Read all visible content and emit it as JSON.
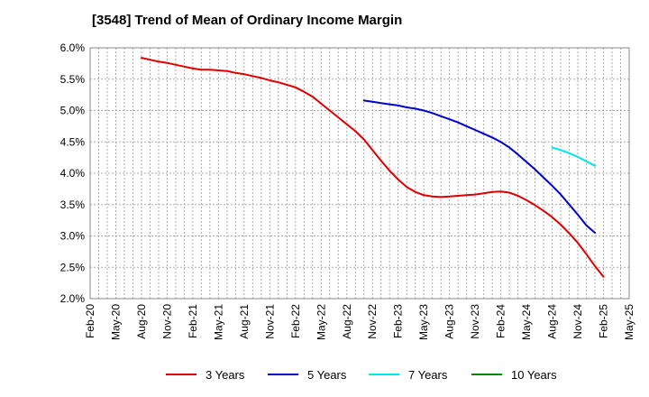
{
  "chart_data": {
    "type": "line",
    "title": "[3548]  Trend of Mean of Ordinary Income Margin",
    "xlabel": "",
    "ylabel": "",
    "x_ticks": [
      "Feb-20",
      "May-20",
      "Aug-20",
      "Nov-20",
      "Feb-21",
      "May-21",
      "Aug-21",
      "Nov-21",
      "Feb-22",
      "May-22",
      "Aug-22",
      "Nov-22",
      "Feb-23",
      "May-23",
      "Aug-23",
      "Nov-23",
      "Feb-24",
      "May-24",
      "Aug-24",
      "Nov-24",
      "Feb-25",
      "May-25"
    ],
    "y_ticks": [
      "6.0%",
      "5.5%",
      "5.0%",
      "4.5%",
      "4.0%",
      "3.5%",
      "3.0%",
      "2.5%",
      "2.0%"
    ],
    "ylim": [
      2.0,
      6.0
    ],
    "x_range": [
      "2020-02",
      "2025-05"
    ],
    "grid": true,
    "legend_position": "bottom",
    "series": [
      {
        "name": "3 Years",
        "color": "#dd0000",
        "points": [
          [
            "2020-08",
            5.84
          ],
          [
            "2020-09",
            5.81
          ],
          [
            "2020-10",
            5.78
          ],
          [
            "2020-11",
            5.76
          ],
          [
            "2020-12",
            5.73
          ],
          [
            "2021-01",
            5.7
          ],
          [
            "2021-02",
            5.67
          ],
          [
            "2021-03",
            5.65
          ],
          [
            "2021-04",
            5.65
          ],
          [
            "2021-05",
            5.64
          ],
          [
            "2021-06",
            5.63
          ],
          [
            "2021-07",
            5.6
          ],
          [
            "2021-08",
            5.58
          ],
          [
            "2021-09",
            5.55
          ],
          [
            "2021-10",
            5.52
          ],
          [
            "2021-11",
            5.48
          ],
          [
            "2021-12",
            5.45
          ],
          [
            "2022-01",
            5.41
          ],
          [
            "2022-02",
            5.37
          ],
          [
            "2022-03",
            5.3
          ],
          [
            "2022-04",
            5.22
          ],
          [
            "2022-05",
            5.11
          ],
          [
            "2022-06",
            5.0
          ],
          [
            "2022-07",
            4.89
          ],
          [
            "2022-08",
            4.78
          ],
          [
            "2022-09",
            4.67
          ],
          [
            "2022-10",
            4.54
          ],
          [
            "2022-11",
            4.37
          ],
          [
            "2022-12",
            4.2
          ],
          [
            "2023-01",
            4.04
          ],
          [
            "2023-02",
            3.9
          ],
          [
            "2023-03",
            3.78
          ],
          [
            "2023-04",
            3.7
          ],
          [
            "2023-05",
            3.65
          ],
          [
            "2023-06",
            3.63
          ],
          [
            "2023-07",
            3.62
          ],
          [
            "2023-08",
            3.63
          ],
          [
            "2023-09",
            3.64
          ],
          [
            "2023-10",
            3.65
          ],
          [
            "2023-11",
            3.66
          ],
          [
            "2023-12",
            3.68
          ],
          [
            "2024-01",
            3.7
          ],
          [
            "2024-02",
            3.71
          ],
          [
            "2024-03",
            3.69
          ],
          [
            "2024-04",
            3.64
          ],
          [
            "2024-05",
            3.57
          ],
          [
            "2024-06",
            3.49
          ],
          [
            "2024-07",
            3.4
          ],
          [
            "2024-08",
            3.3
          ],
          [
            "2024-09",
            3.18
          ],
          [
            "2024-10",
            3.04
          ],
          [
            "2024-11",
            2.89
          ],
          [
            "2024-12",
            2.71
          ],
          [
            "2025-01",
            2.52
          ],
          [
            "2025-02",
            2.35
          ]
        ]
      },
      {
        "name": "5 Years",
        "color": "#0000cc",
        "points": [
          [
            "2022-10",
            5.16
          ],
          [
            "2022-11",
            5.14
          ],
          [
            "2022-12",
            5.12
          ],
          [
            "2023-01",
            5.1
          ],
          [
            "2023-02",
            5.08
          ],
          [
            "2023-03",
            5.05
          ],
          [
            "2023-04",
            5.03
          ],
          [
            "2023-05",
            5.0
          ],
          [
            "2023-06",
            4.96
          ],
          [
            "2023-07",
            4.91
          ],
          [
            "2023-08",
            4.86
          ],
          [
            "2023-09",
            4.81
          ],
          [
            "2023-10",
            4.75
          ],
          [
            "2023-11",
            4.69
          ],
          [
            "2023-12",
            4.63
          ],
          [
            "2024-01",
            4.57
          ],
          [
            "2024-02",
            4.5
          ],
          [
            "2024-03",
            4.41
          ],
          [
            "2024-04",
            4.3
          ],
          [
            "2024-05",
            4.18
          ],
          [
            "2024-06",
            4.06
          ],
          [
            "2024-07",
            3.93
          ],
          [
            "2024-08",
            3.8
          ],
          [
            "2024-09",
            3.66
          ],
          [
            "2024-10",
            3.5
          ],
          [
            "2024-11",
            3.34
          ],
          [
            "2024-12",
            3.17
          ],
          [
            "2025-01",
            3.05
          ]
        ]
      },
      {
        "name": "7 Years",
        "color": "#00e5e5",
        "points": [
          [
            "2024-08",
            4.41
          ],
          [
            "2024-09",
            4.37
          ],
          [
            "2024-10",
            4.32
          ],
          [
            "2024-11",
            4.26
          ],
          [
            "2024-12",
            4.19
          ],
          [
            "2025-01",
            4.12
          ]
        ]
      },
      {
        "name": "10 Years",
        "color": "#008800",
        "points": []
      }
    ]
  }
}
